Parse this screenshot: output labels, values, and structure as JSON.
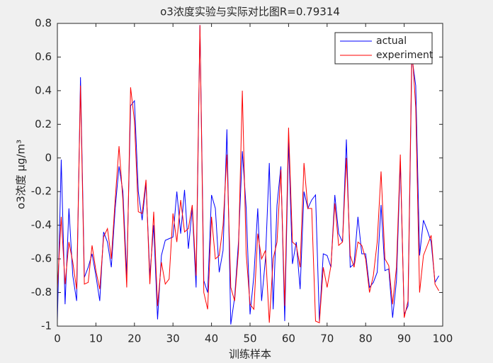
{
  "chart_data": {
    "type": "line",
    "title": "o3浓度实验与实际对比图R=0.79314",
    "xlabel": "训练样本",
    "ylabel": "o3浓度 μg/m³",
    "x": [
      0,
      1,
      2,
      3,
      4,
      5,
      6,
      7,
      8,
      9,
      10,
      11,
      12,
      13,
      14,
      15,
      16,
      17,
      18,
      19,
      20,
      21,
      22,
      23,
      24,
      25,
      26,
      27,
      28,
      29,
      30,
      31,
      32,
      33,
      34,
      35,
      36,
      37,
      38,
      39,
      40,
      41,
      42,
      43,
      44,
      45,
      46,
      47,
      48,
      49,
      50,
      51,
      52,
      53,
      54,
      55,
      56,
      57,
      58,
      59,
      60,
      61,
      62,
      63,
      64,
      65,
      66,
      67,
      68,
      69,
      70,
      71,
      72,
      73,
      74,
      75,
      76,
      77,
      78,
      79,
      80,
      81,
      82,
      83,
      84,
      85,
      86,
      87,
      88,
      89,
      90,
      91,
      92,
      93,
      94,
      95,
      96,
      97,
      98,
      99
    ],
    "series": [
      {
        "name": "actual",
        "color": "#0000ff",
        "values": [
          -0.97,
          -0.01,
          -0.87,
          -0.3,
          -0.7,
          -0.85,
          0.48,
          -0.71,
          -0.65,
          -0.57,
          -0.7,
          -0.85,
          -0.44,
          -0.5,
          -0.65,
          -0.3,
          -0.05,
          -0.2,
          -0.7,
          0.31,
          0.34,
          -0.2,
          -0.37,
          -0.15,
          -0.7,
          -0.4,
          -0.96,
          -0.58,
          -0.49,
          -0.48,
          -0.47,
          -0.2,
          -0.45,
          -0.19,
          -0.54,
          -0.3,
          -0.77,
          0.79,
          -0.73,
          -0.8,
          -0.22,
          -0.3,
          -0.68,
          -0.55,
          0.17,
          -0.99,
          -0.83,
          -0.5,
          0.04,
          -0.3,
          -0.93,
          -0.7,
          -0.3,
          -0.85,
          -0.6,
          -0.03,
          -0.9,
          -0.28,
          -0.05,
          -0.97,
          0.1,
          -0.63,
          -0.5,
          -0.78,
          -0.2,
          -0.3,
          -0.25,
          -0.22,
          -0.97,
          -0.57,
          -0.58,
          -0.65,
          -0.22,
          -0.45,
          -0.5,
          0.11,
          -0.65,
          -0.63,
          -0.35,
          -0.57,
          -0.57,
          -0.77,
          -0.74,
          -0.68,
          -0.28,
          -0.67,
          -0.66,
          -0.95,
          -0.73,
          -0.02,
          -0.93,
          -0.88,
          0.6,
          0.43,
          -0.58,
          -0.37,
          -0.43,
          -0.5,
          -0.74,
          -0.7
        ]
      },
      {
        "name": "experiment",
        "color": "#ff0000",
        "values": [
          -0.78,
          -0.35,
          -0.75,
          -0.5,
          -0.62,
          -0.78,
          0.43,
          -0.75,
          -0.74,
          -0.52,
          -0.67,
          -0.78,
          -0.47,
          -0.42,
          -0.6,
          -0.25,
          0.07,
          -0.25,
          -0.77,
          0.42,
          0.22,
          -0.32,
          -0.33,
          -0.13,
          -0.75,
          -0.32,
          -0.88,
          -0.62,
          -0.75,
          -0.72,
          -0.33,
          -0.5,
          -0.25,
          -0.44,
          -0.42,
          -0.28,
          -0.7,
          0.79,
          -0.8,
          -0.9,
          -0.35,
          -0.6,
          -0.58,
          -0.4,
          0.02,
          -0.77,
          -0.85,
          -0.55,
          0.4,
          -0.57,
          -0.87,
          -0.9,
          -0.45,
          -0.6,
          -0.55,
          -0.98,
          -0.6,
          -0.5,
          -0.07,
          -0.88,
          0.18,
          -0.5,
          -0.52,
          -0.65,
          -0.03,
          -0.3,
          -0.3,
          -0.97,
          -0.98,
          -0.65,
          -0.77,
          -0.64,
          -0.27,
          -0.52,
          -0.5,
          0.0,
          -0.58,
          -0.65,
          -0.5,
          -0.52,
          -0.6,
          -0.8,
          -0.7,
          -0.5,
          -0.08,
          -0.6,
          -0.64,
          -0.87,
          -0.65,
          0.02,
          -0.95,
          -0.85,
          0.66,
          0.3,
          -0.8,
          -0.58,
          -0.52,
          -0.46,
          -0.75,
          -0.79
        ]
      }
    ],
    "xlim": [
      0,
      100
    ],
    "xticks": [
      0,
      10,
      20,
      30,
      40,
      50,
      60,
      70,
      80,
      90,
      100
    ],
    "ylim": [
      -1,
      0.8
    ],
    "yticks": [
      -1,
      -0.8,
      -0.6,
      -0.4,
      -0.2,
      0,
      0.2,
      0.4,
      0.6,
      0.8
    ],
    "grid": false,
    "legend": "northeast"
  }
}
